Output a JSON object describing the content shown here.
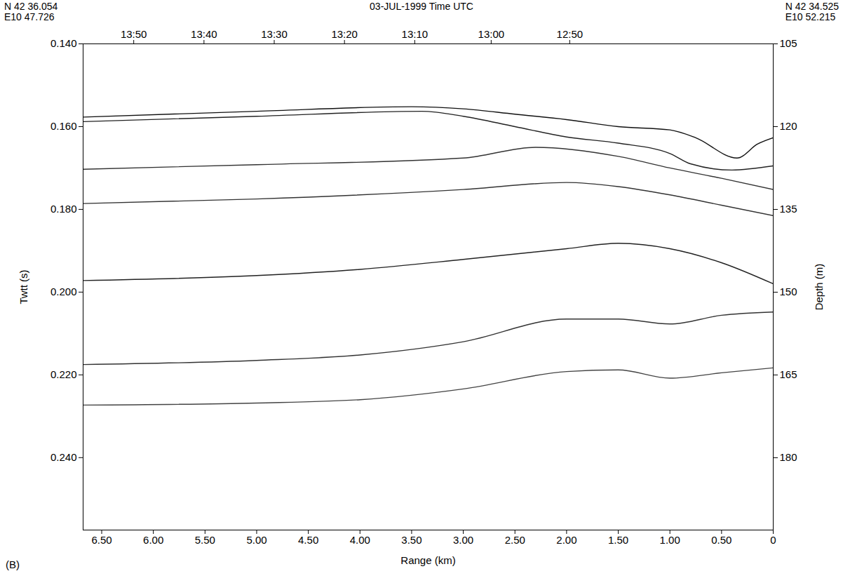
{
  "chart_data": {
    "type": "line",
    "title": "03-JUL-1999 Time UTC",
    "corner_labels": {
      "top_left": [
        "N 42 36.054",
        "E10 47.726"
      ],
      "top_right": [
        "N 42 34.525",
        "E10 52.215"
      ]
    },
    "panel_label": "(B)",
    "x_label": "Range (km)",
    "y_label": "Twtt (s)",
    "y2_label": "Depth (m)",
    "xlim": [
      6.68,
      0
    ],
    "xticks": [
      {
        "value": 6.5,
        "label": "6.50"
      },
      {
        "value": 6,
        "label": "6.00"
      },
      {
        "value": 5.5,
        "label": "5.50"
      },
      {
        "value": 5,
        "label": "5.00"
      },
      {
        "value": 4.5,
        "label": "4.50"
      },
      {
        "value": 4,
        "label": "4.00"
      },
      {
        "value": 3.5,
        "label": "3.50"
      },
      {
        "value": 3,
        "label": "3.00"
      },
      {
        "value": 2.5,
        "label": "2.50"
      },
      {
        "value": 2,
        "label": "2.00"
      },
      {
        "value": 1.5,
        "label": "1.50"
      },
      {
        "value": 1,
        "label": "1.00"
      },
      {
        "value": 0.5,
        "label": "0.50"
      },
      0
    ],
    "top_ticks": [
      {
        "value": 6.19,
        "label": "13:50"
      },
      {
        "value": 5.51,
        "label": "13:40"
      },
      {
        "value": 4.83,
        "label": "13:30"
      },
      {
        "value": 4.15,
        "label": "13:20"
      },
      {
        "value": 3.47,
        "label": "13:10"
      },
      {
        "value": 2.73,
        "label": "13:00"
      },
      {
        "value": 1.97,
        "label": "12:50"
      }
    ],
    "ylim": [
      0.14,
      0.2575
    ],
    "yticks": [
      {
        "value": 0.14,
        "label": "0.140"
      },
      {
        "value": 0.16,
        "label": "0.160"
      },
      {
        "value": 0.18,
        "label": "0.180"
      },
      {
        "value": 0.2,
        "label": "0.200"
      },
      {
        "value": 0.22,
        "label": "0.220"
      },
      {
        "value": 0.24,
        "label": "0.240"
      }
    ],
    "y2lim": [
      105,
      193.1
    ],
    "y2ticks": [
      105,
      120,
      135,
      150,
      165,
      180
    ],
    "series": [
      {
        "color": "#111111",
        "x": [
          6.68,
          5.0,
          3.5,
          3.0,
          2.5,
          2.0,
          1.5,
          1.0,
          0.75,
          0.35,
          0.15,
          0
        ],
        "values": [
          0.1577,
          0.1563,
          0.1552,
          0.1557,
          0.157,
          0.1583,
          0.16,
          0.1608,
          0.1627,
          0.1676,
          0.1642,
          0.1627
        ]
      },
      {
        "color": "#222222",
        "x": [
          6.68,
          5.0,
          3.4,
          3.0,
          2.5,
          2.0,
          1.5,
          1.0,
          0.8,
          0.4,
          0
        ],
        "values": [
          0.1588,
          0.1575,
          0.1563,
          0.1575,
          0.16,
          0.1625,
          0.164,
          0.1665,
          0.169,
          0.1705,
          0.1695
        ]
      },
      {
        "color": "#333333",
        "x": [
          6.68,
          5.0,
          3.0,
          2.3,
          1.5,
          1.0,
          0.5,
          0
        ],
        "values": [
          0.1703,
          0.1692,
          0.1676,
          0.165,
          0.1672,
          0.17,
          0.1725,
          0.1752
        ]
      },
      {
        "color": "#333333",
        "x": [
          6.68,
          5.0,
          3.0,
          2.0,
          1.5,
          1.0,
          0.5,
          0
        ],
        "values": [
          0.1786,
          0.1775,
          0.1752,
          0.1735,
          0.1745,
          0.1765,
          0.179,
          0.1815
        ]
      },
      {
        "color": "#222222",
        "x": [
          6.68,
          5.0,
          4.0,
          3.0,
          2.0,
          1.5,
          1.0,
          0.5,
          0
        ],
        "values": [
          0.1972,
          0.196,
          0.1945,
          0.1921,
          0.1895,
          0.1882,
          0.1895,
          0.1929,
          0.198
        ]
      },
      {
        "color": "#333333",
        "x": [
          6.68,
          5.0,
          4.0,
          3.0,
          2.0,
          1.5,
          1.0,
          0.5,
          0
        ],
        "values": [
          0.2175,
          0.2165,
          0.2152,
          0.212,
          0.2065,
          0.2065,
          0.2077,
          0.2056,
          0.2048
        ]
      },
      {
        "color": "#444444",
        "x": [
          6.68,
          5.0,
          4.0,
          3.0,
          2.0,
          1.5,
          1.0,
          0.5,
          0
        ],
        "values": [
          0.2273,
          0.2268,
          0.226,
          0.2234,
          0.2192,
          0.2188,
          0.2208,
          0.2195,
          0.2183
        ]
      }
    ]
  }
}
